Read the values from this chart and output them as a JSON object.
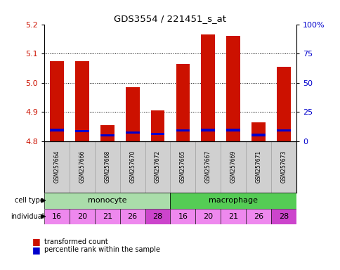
{
  "title": "GDS3554 / 221451_s_at",
  "samples": [
    "GSM257664",
    "GSM257666",
    "GSM257668",
    "GSM257670",
    "GSM257672",
    "GSM257665",
    "GSM257667",
    "GSM257669",
    "GSM257671",
    "GSM257673"
  ],
  "cell_types": [
    "monocyte",
    "monocyte",
    "monocyte",
    "monocyte",
    "monocyte",
    "macrophage",
    "macrophage",
    "macrophage",
    "macrophage",
    "macrophage"
  ],
  "individuals": [
    16,
    20,
    21,
    26,
    28,
    16,
    20,
    21,
    26,
    28
  ],
  "red_values": [
    5.075,
    5.075,
    4.855,
    4.985,
    4.905,
    5.065,
    5.165,
    5.16,
    4.865,
    5.055
  ],
  "blue_values": [
    4.838,
    4.835,
    4.82,
    4.83,
    4.825,
    4.837,
    4.838,
    4.838,
    4.821,
    4.836
  ],
  "ymin": 4.8,
  "ymax": 5.2,
  "yticks": [
    4.8,
    4.9,
    5.0,
    5.1,
    5.2
  ],
  "y2labels": [
    "0",
    "25",
    "50",
    "75",
    "100%"
  ],
  "monocyte_color": "#aaddaa",
  "macrophage_color": "#55cc55",
  "individual_colors": [
    "#ee88ee",
    "#ee88ee",
    "#ee88ee",
    "#ee88ee",
    "#cc44cc",
    "#ee88ee",
    "#ee88ee",
    "#ee88ee",
    "#ee88ee",
    "#cc44cc"
  ],
  "bar_color": "#cc1100",
  "blue_color": "#0000cc",
  "left_tick_color": "#cc1100",
  "right_tick_color": "#0000cc",
  "sample_box_color": "#cccccc",
  "bar_width": 0.55
}
